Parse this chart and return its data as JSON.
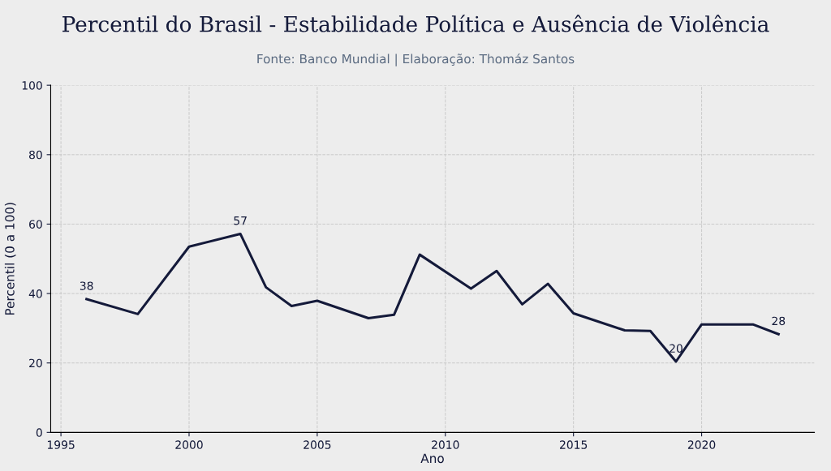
{
  "chart_data": {
    "type": "line",
    "title": "Percentil do Brasil - Estabilidade Política e Ausência de Violência",
    "subtitle": "Fonte: Banco Mundial | Elaboração: Thomáz Santos",
    "xlabel": "Ano",
    "ylabel": "Percentil (0 a 100)",
    "x": [
      1996,
      1998,
      2000,
      2002,
      2003,
      2004,
      2005,
      2007,
      2008,
      2009,
      2011,
      2012,
      2013,
      2014,
      2015,
      2017,
      2018,
      2019,
      2020,
      2022,
      2023
    ],
    "series": [
      {
        "color": "#141a3a",
        "values": [
          38.4,
          34.1,
          53.5,
          57.2,
          41.8,
          36.4,
          37.9,
          32.9,
          33.9,
          51.2,
          41.4,
          46.5,
          36.9,
          42.8,
          34.3,
          29.4,
          29.2,
          20.4,
          31.1,
          31.1,
          28.3
        ],
        "value_labels": [
          "38",
          null,
          null,
          "57",
          null,
          null,
          null,
          null,
          null,
          null,
          null,
          null,
          null,
          null,
          null,
          null,
          null,
          "20",
          null,
          null,
          "28"
        ]
      }
    ],
    "xlim": [
      1994.6,
      2024.4
    ],
    "xticks": [
      1995,
      2000,
      2005,
      2010,
      2015,
      2020
    ],
    "ylim": [
      0,
      100
    ],
    "yticks": [
      0,
      20,
      40,
      60,
      80,
      100
    ],
    "grid": true,
    "marker": "none",
    "line_style": "solid"
  }
}
